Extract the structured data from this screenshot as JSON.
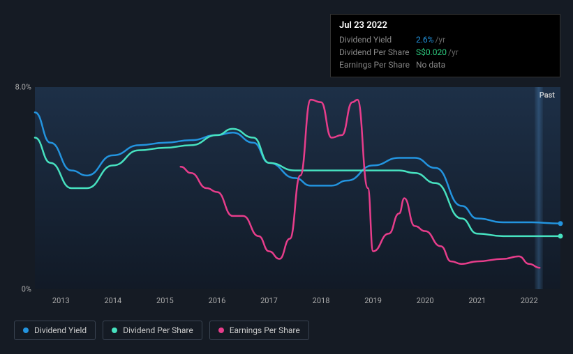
{
  "tooltip": {
    "date": "Jul 23 2022",
    "rows": [
      {
        "label": "Dividend Yield",
        "value": "2.6%",
        "unit": "/yr",
        "value_color": "#2394df"
      },
      {
        "label": "Dividend Per Share",
        "value": "S$0.020",
        "unit": "/yr",
        "value_color": "#2dc97e"
      },
      {
        "label": "Earnings Per Share",
        "value": "No data",
        "unit": "",
        "value_color": "#888888"
      }
    ]
  },
  "chart": {
    "type": "line",
    "background_gradient": [
      "#1e324b",
      "#0e1826"
    ],
    "past_label": "Past",
    "y_axis": {
      "min": 0,
      "max": 8,
      "ticks": [
        {
          "value": 0,
          "label": "0%"
        },
        {
          "value": 8,
          "label": "8.0%"
        }
      ],
      "label_color": "#aaaaaa",
      "label_fontsize": 11
    },
    "x_axis": {
      "min": 2012.5,
      "max": 2022.6,
      "ticks": [
        2013,
        2014,
        2015,
        2016,
        2017,
        2018,
        2019,
        2020,
        2021,
        2022
      ],
      "label_color": "#aaaaaa",
      "label_fontsize": 11
    },
    "series": [
      {
        "name": "Dividend Yield",
        "color": "#2394df",
        "line_width": 2.5,
        "end_dot": true,
        "points": [
          [
            2012.5,
            7.0
          ],
          [
            2012.8,
            5.8
          ],
          [
            2013.2,
            4.7
          ],
          [
            2013.5,
            4.5
          ],
          [
            2014.0,
            5.3
          ],
          [
            2014.5,
            5.7
          ],
          [
            2015.0,
            5.8
          ],
          [
            2015.5,
            5.9
          ],
          [
            2016.0,
            6.1
          ],
          [
            2016.3,
            6.2
          ],
          [
            2016.7,
            5.8
          ],
          [
            2017.0,
            5.0
          ],
          [
            2017.5,
            4.4
          ],
          [
            2017.8,
            4.1
          ],
          [
            2018.2,
            4.1
          ],
          [
            2018.5,
            4.3
          ],
          [
            2019.0,
            4.9
          ],
          [
            2019.5,
            5.2
          ],
          [
            2019.8,
            5.2
          ],
          [
            2020.2,
            4.8
          ],
          [
            2020.7,
            3.3
          ],
          [
            2021.0,
            2.8
          ],
          [
            2021.5,
            2.65
          ],
          [
            2022.0,
            2.65
          ],
          [
            2022.6,
            2.6
          ]
        ]
      },
      {
        "name": "Dividend Per Share",
        "color": "#47e2c0",
        "line_width": 2.5,
        "end_dot": true,
        "points": [
          [
            2012.5,
            6.0
          ],
          [
            2012.8,
            5.0
          ],
          [
            2013.2,
            4.0
          ],
          [
            2013.5,
            4.0
          ],
          [
            2014.0,
            4.9
          ],
          [
            2014.5,
            5.5
          ],
          [
            2015.0,
            5.6
          ],
          [
            2015.5,
            5.7
          ],
          [
            2016.0,
            6.1
          ],
          [
            2016.3,
            6.35
          ],
          [
            2016.7,
            6.0
          ],
          [
            2017.0,
            5.0
          ],
          [
            2017.5,
            4.7
          ],
          [
            2017.8,
            4.7
          ],
          [
            2018.5,
            4.7
          ],
          [
            2019.0,
            4.7
          ],
          [
            2019.5,
            4.7
          ],
          [
            2019.8,
            4.6
          ],
          [
            2020.2,
            4.2
          ],
          [
            2020.7,
            2.8
          ],
          [
            2021.0,
            2.2
          ],
          [
            2021.5,
            2.1
          ],
          [
            2022.0,
            2.1
          ],
          [
            2022.6,
            2.1
          ]
        ]
      },
      {
        "name": "Earnings Per Share",
        "color": "#e73d8b",
        "line_width": 2.5,
        "end_dot": false,
        "points": [
          [
            2015.3,
            4.85
          ],
          [
            2015.5,
            4.6
          ],
          [
            2015.8,
            4.0
          ],
          [
            2016.0,
            3.85
          ],
          [
            2016.3,
            2.9
          ],
          [
            2016.5,
            2.9
          ],
          [
            2016.8,
            2.1
          ],
          [
            2017.0,
            1.5
          ],
          [
            2017.2,
            1.2
          ],
          [
            2017.4,
            2.0
          ],
          [
            2017.6,
            4.5
          ],
          [
            2017.8,
            7.5
          ],
          [
            2018.0,
            7.4
          ],
          [
            2018.2,
            6.0
          ],
          [
            2018.4,
            6.1
          ],
          [
            2018.6,
            7.4
          ],
          [
            2018.7,
            7.5
          ],
          [
            2018.9,
            4.0
          ],
          [
            2019.0,
            1.5
          ],
          [
            2019.3,
            2.2
          ],
          [
            2019.5,
            3.0
          ],
          [
            2019.6,
            3.6
          ],
          [
            2019.8,
            2.5
          ],
          [
            2020.0,
            2.3
          ],
          [
            2020.3,
            1.7
          ],
          [
            2020.5,
            1.1
          ],
          [
            2020.7,
            1.0
          ],
          [
            2021.0,
            1.1
          ],
          [
            2021.5,
            1.2
          ],
          [
            2021.8,
            1.3
          ],
          [
            2022.0,
            1.0
          ],
          [
            2022.2,
            0.85
          ]
        ]
      }
    ]
  },
  "legend": {
    "items": [
      {
        "label": "Dividend Yield",
        "color": "#2394df"
      },
      {
        "label": "Dividend Per Share",
        "color": "#47e2c0"
      },
      {
        "label": "Earnings Per Share",
        "color": "#e73d8b"
      }
    ],
    "border_color": "#3a4452",
    "label_color": "#cccccc",
    "label_fontsize": 12
  }
}
